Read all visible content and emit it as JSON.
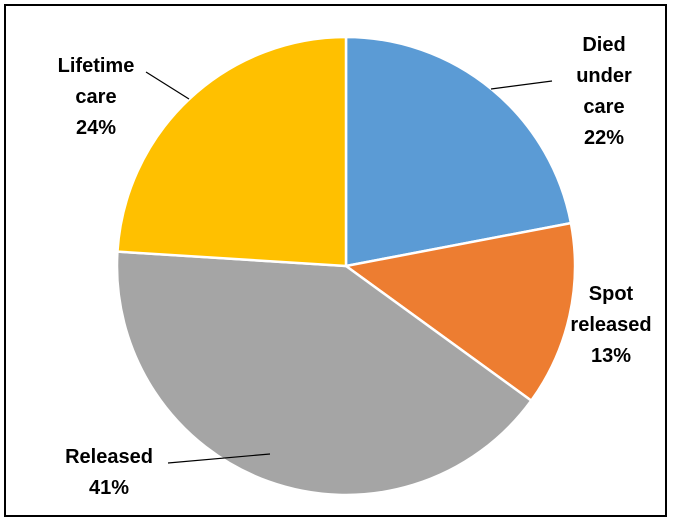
{
  "chart_data": {
    "type": "pie",
    "title": "",
    "slices": [
      {
        "label": [
          "Died",
          "under",
          "care"
        ],
        "value": 22,
        "value_label": "22%",
        "color": "#5B9BD5"
      },
      {
        "label": [
          "Spot",
          "released"
        ],
        "value": 13,
        "value_label": "13%",
        "color": "#ED7D31"
      },
      {
        "label": [
          "Released"
        ],
        "value": 41,
        "value_label": "41%",
        "color": "#A5A5A5"
      },
      {
        "label": [
          "Lifetime",
          "care"
        ],
        "value": 24,
        "value_label": "24%",
        "color": "#FFC000"
      }
    ],
    "start_angle_deg": 0,
    "direction": "clockwise",
    "legend": "none"
  }
}
